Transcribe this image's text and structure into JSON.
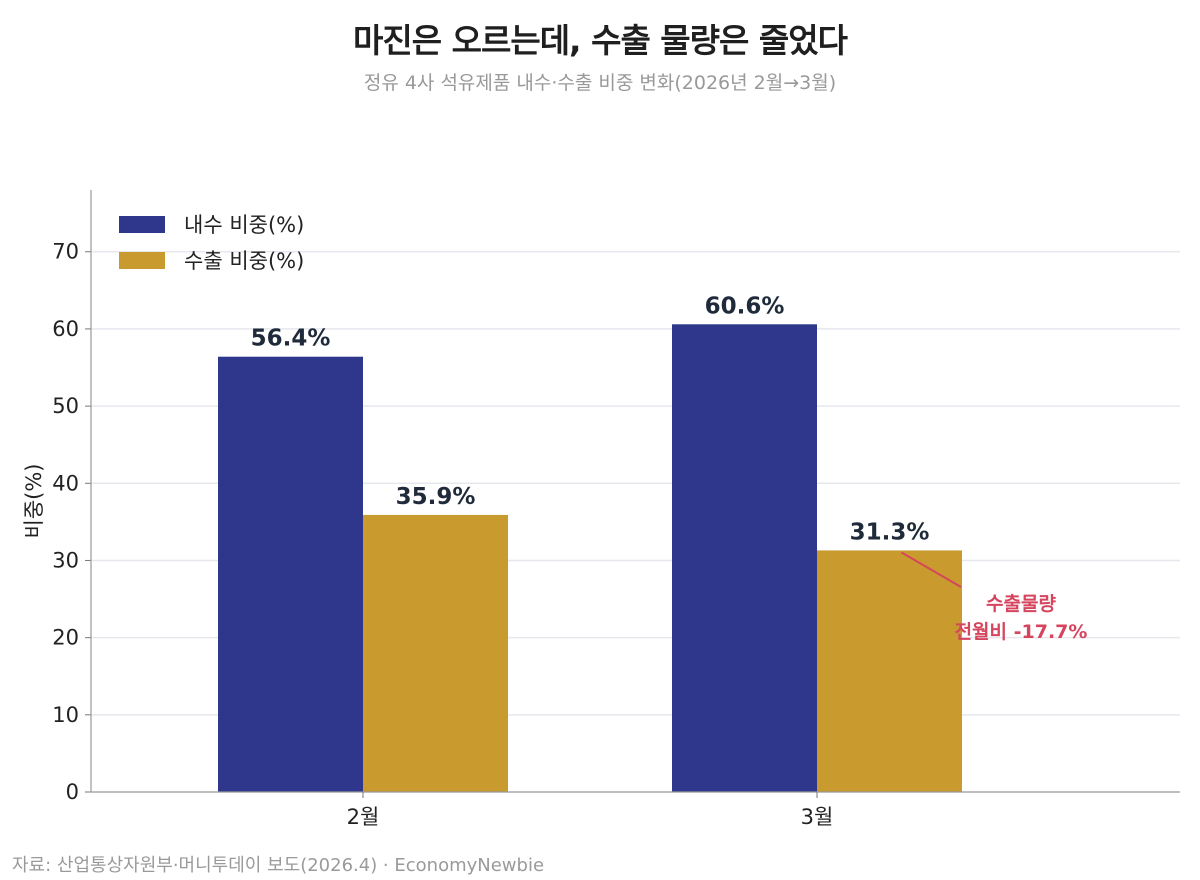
{
  "header": {
    "title": "마진은 오르는데, 수출 물량은 줄었다",
    "subtitle": "정유 4사 석유제품 내수·수출 비중 변화(2026년 2월→3월)"
  },
  "footer": {
    "source": "자료: 산업통상자원부·머니투데이 보도(2026.4) · EconomyNewbie"
  },
  "chart_data": {
    "type": "bar",
    "categories": [
      "2월",
      "3월"
    ],
    "series": [
      {
        "name": "내수 비중(%)",
        "values": [
          56.4,
          60.6
        ],
        "color": "#2e378b",
        "labels": [
          "56.4%",
          "60.6%"
        ]
      },
      {
        "name": "수출 비중(%)",
        "values": [
          35.9,
          31.3
        ],
        "color": "#c99a2e",
        "labels": [
          "35.9%",
          "31.3%"
        ]
      }
    ],
    "ylabel": "비중(%)",
    "ylim": [
      0,
      78
    ],
    "yticks": [
      0,
      10,
      20,
      30,
      40,
      50,
      60,
      70
    ],
    "grid": true,
    "legend_position": "top-left",
    "annotation": {
      "lines": [
        "수출물량",
        "전월비 -17.7%"
      ],
      "color": "#d6455e",
      "series_index": 1,
      "category_index": 1
    }
  }
}
